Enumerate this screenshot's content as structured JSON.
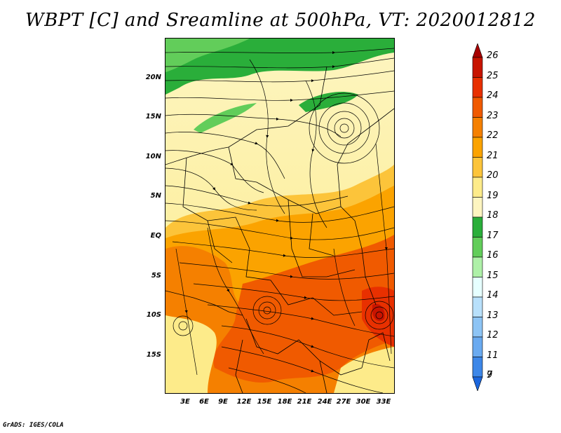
{
  "title": "WBPT [C] and Sreamline at 500hPa, VT: 2020012812",
  "credit": "GrADS: IGES/COLA",
  "map": {
    "lat_labels": [
      "20N",
      "15N",
      "10N",
      "5N",
      "EQ",
      "5S",
      "10S",
      "15S"
    ],
    "lon_labels": [
      "3E",
      "6E",
      "9E",
      "12E",
      "15E",
      "18E",
      "21E",
      "24E",
      "27E",
      "30E",
      "33E"
    ]
  },
  "colorbar": {
    "labels": [
      "26",
      "25",
      "24",
      "23",
      "22",
      "21",
      "20",
      "19",
      "18",
      "17",
      "16",
      "15",
      "14",
      "13",
      "12",
      "11",
      "9",
      "7"
    ],
    "colors": [
      "#a80000",
      "#c81400",
      "#e83000",
      "#f05a00",
      "#f58000",
      "#fba300",
      "#fcc43a",
      "#fdeb8a",
      "#fdf5c0",
      "#2aae3a",
      "#62cd5a",
      "#aef0a8",
      "#e6ffff",
      "#b8e0fb",
      "#8dc4f5",
      "#6aaaf0",
      "#3d87e8",
      "#1b66dd"
    ]
  },
  "colors": {
    "streamline": "#000000",
    "boundary": "#000000"
  }
}
